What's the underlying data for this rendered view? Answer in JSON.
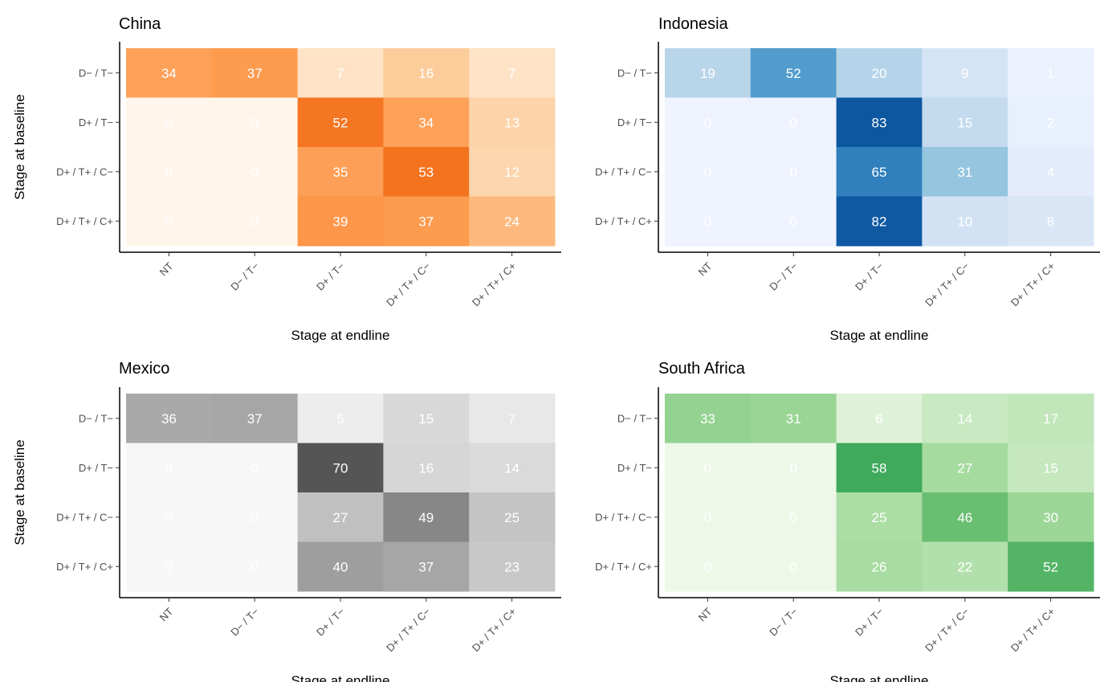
{
  "chart_data": {
    "type": "heatmap",
    "x_categories": [
      "NT",
      "D− / T−",
      "D+ / T−",
      "D+ / T+ / C−",
      "D+ / T+ / C+"
    ],
    "y_categories": [
      "D− / T−",
      "D+ / T−",
      "D+ / T+ / C−",
      "D+ / T+ / C+"
    ],
    "xlabel": "Stage at endline",
    "ylabel": "Stage at baseline",
    "value_range": [
      0,
      100
    ],
    "panels": [
      {
        "title": "China",
        "palette": [
          "#fff5eb",
          "#fdd0a2",
          "#fdae6b",
          "#fd8d3c",
          "#f16913",
          "#d94801",
          "#a63603",
          "#7f2704"
        ],
        "values": [
          [
            34,
            37,
            7,
            16,
            7
          ],
          [
            0,
            0,
            52,
            34,
            13
          ],
          [
            0,
            0,
            35,
            53,
            12
          ],
          [
            0,
            0,
            39,
            37,
            24
          ]
        ]
      },
      {
        "title": "Indonesia",
        "palette": [
          "#eff3ff",
          "#c6dbef",
          "#9ecae1",
          "#6baed6",
          "#4292c6",
          "#2171b5",
          "#08519c",
          "#08306b"
        ],
        "values": [
          [
            19,
            52,
            20,
            9,
            1
          ],
          [
            0,
            0,
            83,
            15,
            2
          ],
          [
            0,
            0,
            65,
            31,
            4
          ],
          [
            0,
            0,
            82,
            10,
            8
          ]
        ]
      },
      {
        "title": "Mexico",
        "palette": [
          "#f7f7f7",
          "#d9d9d9",
          "#bdbdbd",
          "#969696",
          "#737373",
          "#525252",
          "#252525",
          "#000000"
        ],
        "values": [
          [
            36,
            37,
            5,
            15,
            7
          ],
          [
            0,
            0,
            70,
            16,
            14
          ],
          [
            0,
            0,
            27,
            49,
            25
          ],
          [
            0,
            0,
            40,
            37,
            23
          ]
        ]
      },
      {
        "title": "South Africa",
        "palette": [
          "#edf8e9",
          "#c7e9c0",
          "#a1d99b",
          "#74c476",
          "#41ab5d",
          "#238b45",
          "#006d2c",
          "#00441b"
        ],
        "values": [
          [
            33,
            31,
            6,
            14,
            17
          ],
          [
            0,
            0,
            58,
            27,
            15
          ],
          [
            0,
            0,
            25,
            46,
            30
          ],
          [
            0,
            0,
            26,
            22,
            52
          ]
        ]
      }
    ]
  }
}
